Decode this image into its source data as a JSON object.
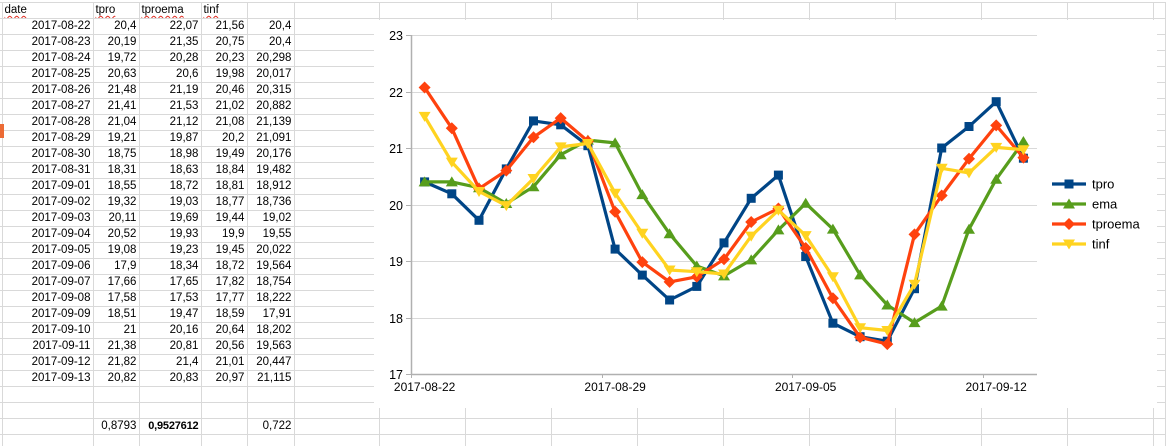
{
  "sheet": {
    "headers": [
      "date",
      "tpro",
      "tproema",
      "tinf"
    ],
    "rows": [
      [
        "2017-08-22",
        "20,4",
        "22,07",
        "21,56",
        "20,4"
      ],
      [
        "2017-08-23",
        "20,19",
        "21,35",
        "20,75",
        "20,4"
      ],
      [
        "2017-08-24",
        "19,72",
        "20,28",
        "20,23",
        "20,298"
      ],
      [
        "2017-08-25",
        "20,63",
        "20,6",
        "19,98",
        "20,017"
      ],
      [
        "2017-08-26",
        "21,48",
        "21,19",
        "20,46",
        "20,315"
      ],
      [
        "2017-08-27",
        "21,41",
        "21,53",
        "21,02",
        "20,882"
      ],
      [
        "2017-08-28",
        "21,04",
        "21,12",
        "21,08",
        "21,139"
      ],
      [
        "2017-08-29",
        "19,21",
        "19,87",
        "20,2",
        "21,091"
      ],
      [
        "2017-08-30",
        "18,75",
        "18,98",
        "19,49",
        "20,176"
      ],
      [
        "2017-08-31",
        "18,31",
        "18,63",
        "18,84",
        "19,482"
      ],
      [
        "2017-09-01",
        "18,55",
        "18,72",
        "18,81",
        "18,912"
      ],
      [
        "2017-09-02",
        "19,32",
        "19,03",
        "18,77",
        "18,736"
      ],
      [
        "2017-09-03",
        "20,11",
        "19,69",
        "19,44",
        "19,02"
      ],
      [
        "2017-09-04",
        "20,52",
        "19,93",
        "19,9",
        "19,55"
      ],
      [
        "2017-09-05",
        "19,08",
        "19,23",
        "19,45",
        "20,022"
      ],
      [
        "2017-09-06",
        "17,9",
        "18,34",
        "18,72",
        "19,564"
      ],
      [
        "2017-09-07",
        "17,66",
        "17,65",
        "17,82",
        "18,754"
      ],
      [
        "2017-09-08",
        "17,58",
        "17,53",
        "17,77",
        "18,222"
      ],
      [
        "2017-09-09",
        "18,51",
        "19,47",
        "18,59",
        "17,91"
      ],
      [
        "2017-09-10",
        "21",
        "20,16",
        "20,64",
        "18,202"
      ],
      [
        "2017-09-11",
        "21,38",
        "20,81",
        "20,56",
        "19,563"
      ],
      [
        "2017-09-12",
        "21,82",
        "21,4",
        "21,01",
        "20,447"
      ],
      [
        "2017-09-13",
        "20,82",
        "20,83",
        "20,97",
        "21,115"
      ]
    ],
    "stats_row": [
      "0,8793",
      "0,9527612",
      "",
      "0,722"
    ]
  },
  "chart_data": {
    "type": "line",
    "categories": [
      "2017-08-22",
      "2017-08-23",
      "2017-08-24",
      "2017-08-25",
      "2017-08-26",
      "2017-08-27",
      "2017-08-28",
      "2017-08-29",
      "2017-08-30",
      "2017-08-31",
      "2017-09-01",
      "2017-09-02",
      "2017-09-03",
      "2017-09-04",
      "2017-09-05",
      "2017-09-06",
      "2017-09-07",
      "2017-09-08",
      "2017-09-09",
      "2017-09-10",
      "2017-09-11",
      "2017-09-12",
      "2017-09-13"
    ],
    "series": [
      {
        "name": "tpro",
        "color": "#004586",
        "marker": "square",
        "values": [
          20.4,
          20.19,
          19.72,
          20.63,
          21.48,
          21.41,
          21.04,
          19.21,
          18.75,
          18.31,
          18.55,
          19.32,
          20.11,
          20.52,
          19.08,
          17.9,
          17.66,
          17.58,
          18.51,
          21,
          21.38,
          21.82,
          20.82
        ]
      },
      {
        "name": "ema",
        "color": "#579D1C",
        "marker": "triangle-up",
        "values": [
          20.4,
          20.4,
          20.298,
          20.017,
          20.315,
          20.882,
          21.139,
          21.091,
          20.176,
          19.482,
          18.912,
          18.736,
          19.02,
          19.55,
          20.022,
          19.564,
          18.754,
          18.222,
          17.91,
          18.202,
          19.563,
          20.447,
          21.115
        ]
      },
      {
        "name": "tproema",
        "color": "#FF420E",
        "marker": "diamond",
        "values": [
          22.07,
          21.35,
          20.28,
          20.6,
          21.19,
          21.53,
          21.12,
          19.87,
          18.98,
          18.63,
          18.72,
          19.03,
          19.69,
          19.93,
          19.23,
          18.34,
          17.65,
          17.53,
          19.47,
          20.16,
          20.81,
          21.4,
          20.83
        ]
      },
      {
        "name": "tinf",
        "color": "#FFD320",
        "marker": "triangle-down",
        "values": [
          21.56,
          20.75,
          20.23,
          19.98,
          20.46,
          21.02,
          21.08,
          20.2,
          19.49,
          18.84,
          18.81,
          18.77,
          19.44,
          19.9,
          19.45,
          18.72,
          17.82,
          17.77,
          18.59,
          20.64,
          20.56,
          21.01,
          20.97
        ]
      }
    ],
    "title": "",
    "xlabel": "",
    "ylabel": "",
    "ylim": [
      17,
      23
    ],
    "ytick_step": 1,
    "ytick_labels": [
      "17",
      "18",
      "19",
      "20",
      "21",
      "22",
      "23"
    ],
    "xtick_indices": [
      0,
      7,
      14,
      21
    ],
    "xtick_labels": [
      "2017-08-22",
      "2017-08-29",
      "2017-09-05",
      "2017-09-12"
    ],
    "grid": "horizontal",
    "legend_position": "right"
  },
  "colors": {
    "row_marker": "#ec6b35",
    "gridline": "#d9d9d9",
    "axis": "#b0b0b0"
  }
}
